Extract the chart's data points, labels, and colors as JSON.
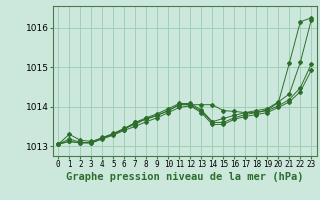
{
  "background_color": "#cce8dc",
  "grid_color": "#99ccb3",
  "line_color": "#2d6e2d",
  "title": "Graphe pression niveau de la mer (hPa)",
  "ylabel_fontsize": 6.5,
  "xtick_fontsize": 5.5,
  "title_fontsize": 7.5,
  "xlim": [
    -0.5,
    23.5
  ],
  "ylim": [
    1012.75,
    1016.55
  ],
  "yticks": [
    1013,
    1014,
    1015,
    1016
  ],
  "xtick_labels": [
    "0",
    "1",
    "2",
    "3",
    "4",
    "5",
    "6",
    "7",
    "8",
    "9",
    "10",
    "11",
    "12",
    "13",
    "14",
    "15",
    "16",
    "17",
    "18",
    "19",
    "20",
    "21",
    "22",
    "23"
  ],
  "series": [
    [
      1013.05,
      1013.3,
      1013.15,
      1013.12,
      1013.2,
      1013.3,
      1013.42,
      1013.6,
      1013.68,
      1013.78,
      1013.9,
      1014.05,
      1014.05,
      1014.05,
      1014.05,
      1013.9,
      1013.88,
      1013.85,
      1013.85,
      1013.92,
      1014.1,
      1015.1,
      1016.15,
      1016.25
    ],
    [
      1013.05,
      1013.18,
      1013.1,
      1013.08,
      1013.2,
      1013.3,
      1013.45,
      1013.6,
      1013.72,
      1013.82,
      1013.95,
      1014.08,
      1014.08,
      1013.92,
      1013.62,
      1013.7,
      1013.78,
      1013.85,
      1013.9,
      1013.95,
      1014.12,
      1014.32,
      1015.12,
      1016.2
    ],
    [
      1013.05,
      1013.12,
      1013.08,
      1013.1,
      1013.22,
      1013.32,
      1013.45,
      1013.55,
      1013.7,
      1013.78,
      1013.9,
      1014.05,
      1014.05,
      1013.88,
      1013.6,
      1013.6,
      1013.72,
      1013.8,
      1013.85,
      1013.9,
      1014.02,
      1014.18,
      1014.48,
      1015.08
    ],
    [
      1013.05,
      1013.12,
      1013.08,
      1013.08,
      1013.18,
      1013.28,
      1013.4,
      1013.5,
      1013.62,
      1013.72,
      1013.85,
      1013.98,
      1014.02,
      1013.85,
      1013.55,
      1013.55,
      1013.68,
      1013.75,
      1013.8,
      1013.85,
      1013.98,
      1014.12,
      1014.38,
      1014.92
    ]
  ]
}
